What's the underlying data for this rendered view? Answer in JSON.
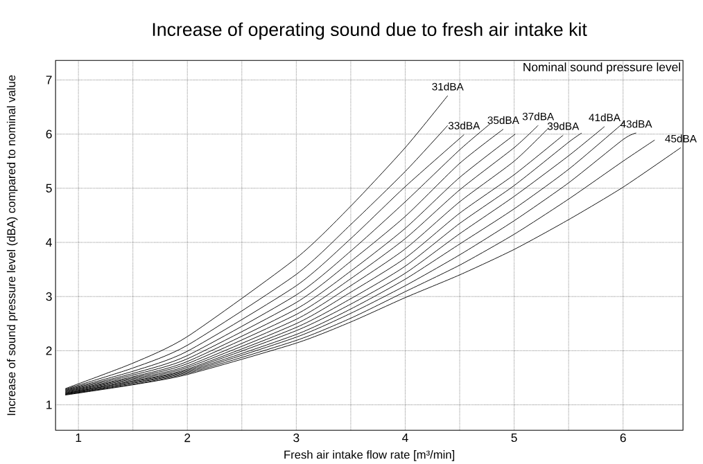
{
  "chart_data": {
    "type": "line",
    "title": "Increase of operating sound due to fresh air intake kit",
    "xlabel": "Fresh air intake flow rate [m³/min]",
    "ylabel": "Increase of sound pressure level (dBA) compared to nominal value",
    "annotations": [
      "Nominal sound pressure level"
    ],
    "xlim": [
      0.79,
      6.55
    ],
    "ylim": [
      0.53,
      7.36
    ],
    "xticks": [
      1,
      {
        "value": 1.5,
        "label": null
      },
      2,
      {
        "value": 2.5,
        "label": null
      },
      3,
      {
        "value": 3.5,
        "label": null
      },
      4,
      {
        "value": 4.5,
        "label": null
      },
      5,
      {
        "value": 5.5,
        "label": null
      },
      6
    ],
    "yticks": [
      1,
      2,
      3,
      4,
      5,
      6,
      7
    ],
    "grid": true,
    "marker": "none",
    "line_style": "solid",
    "series": [
      {
        "name": "31dBA",
        "color": "#000000",
        "x": [
          0.88,
          1.5,
          2,
          3,
          3.5,
          4,
          4.39
        ],
        "values": [
          1.3,
          1.77,
          2.26,
          3.71,
          4.67,
          5.75,
          6.71
        ]
      },
      {
        "color": "#000000",
        "x": [
          0.88,
          1.5,
          2,
          3,
          3.5,
          4,
          4.39
        ],
        "values": [
          1.29,
          1.68,
          2.1,
          3.41,
          4.33,
          5.31,
          6.16
        ]
      },
      {
        "name": "33dBA",
        "color": "#000000",
        "x": [
          0.88,
          1.5,
          2,
          3,
          3.5,
          4,
          4.54
        ],
        "values": [
          1.28,
          1.62,
          1.99,
          3.2,
          4.07,
          5.03,
          5.99
        ]
      },
      {
        "color": "#000000",
        "x": [
          0.88,
          1.5,
          2,
          3,
          3.5,
          4,
          4.5,
          4.78
        ],
        "values": [
          1.27,
          1.58,
          1.91,
          3.03,
          3.84,
          4.75,
          5.71,
          6.19
        ]
      },
      {
        "name": "35dBA",
        "color": "#000000",
        "x": [
          0.88,
          1.5,
          2,
          3,
          3.5,
          4,
          4.5,
          4.9
        ],
        "values": [
          1.26,
          1.55,
          1.85,
          2.89,
          3.65,
          4.48,
          5.46,
          6.09
        ]
      },
      {
        "color": "#000000",
        "x": [
          0.88,
          1.5,
          2,
          3,
          3.5,
          4,
          4.5,
          5.01
        ],
        "values": [
          1.25,
          1.52,
          1.8,
          2.77,
          3.47,
          4.26,
          5.2,
          6.0
        ]
      },
      {
        "name": "37dBA",
        "color": "#000000",
        "x": [
          0.88,
          1.5,
          2,
          3,
          3.5,
          4,
          4.5,
          5,
          5.22
        ],
        "values": [
          1.24,
          1.5,
          1.76,
          2.67,
          3.33,
          4.07,
          4.97,
          5.75,
          6.16
        ]
      },
      {
        "color": "#000000",
        "x": [
          0.88,
          1.5,
          2,
          3,
          3.5,
          4,
          4.5,
          5,
          5.31
        ],
        "values": [
          1.23,
          1.48,
          1.72,
          2.58,
          3.2,
          3.88,
          4.75,
          5.5,
          6.1
        ]
      },
      {
        "name": "39dBA",
        "color": "#000000",
        "x": [
          0.88,
          1.5,
          2,
          3,
          3.5,
          4,
          4.5,
          5,
          5.45
        ],
        "values": [
          1.22,
          1.46,
          1.69,
          2.5,
          3.08,
          3.71,
          4.54,
          5.25,
          5.98
        ]
      },
      {
        "color": "#000000",
        "x": [
          0.88,
          1.5,
          2,
          3,
          3.5,
          4,
          4.5,
          5,
          5.5,
          5.62
        ],
        "values": [
          1.21,
          1.44,
          1.66,
          2.43,
          2.96,
          3.56,
          4.35,
          5.05,
          5.85,
          6.02
        ]
      },
      {
        "name": "41dBA",
        "color": "#000000",
        "x": [
          0.88,
          1.5,
          2,
          3,
          3.5,
          4,
          4.5,
          5,
          5.5,
          5.83
        ],
        "values": [
          1.21,
          1.43,
          1.64,
          2.37,
          2.86,
          3.43,
          4.16,
          4.85,
          5.6,
          6.14
        ]
      },
      {
        "color": "#000000",
        "x": [
          0.88,
          1.5,
          2,
          3,
          3.5,
          4,
          4.5,
          5,
          5.5,
          6.01
        ],
        "values": [
          1.2,
          1.41,
          1.62,
          2.3,
          2.77,
          3.32,
          3.97,
          4.62,
          5.35,
          6.22
        ]
      },
      {
        "name": "43dBA",
        "color": "#000000",
        "x": [
          0.88,
          1.5,
          2,
          3,
          3.5,
          4,
          4.5,
          5,
          5.5,
          6,
          6.12
        ],
        "values": [
          1.19,
          1.4,
          1.6,
          2.25,
          2.69,
          3.2,
          3.77,
          4.4,
          5.1,
          5.9,
          6.02
        ]
      },
      {
        "color": "#000000",
        "x": [
          0.88,
          1.5,
          2,
          3,
          3.5,
          4,
          4.5,
          5,
          5.5,
          6,
          6.29
        ],
        "values": [
          1.19,
          1.38,
          1.58,
          2.19,
          2.6,
          3.09,
          3.58,
          4.15,
          4.8,
          5.5,
          5.89
        ]
      },
      {
        "name": "45dBA",
        "color": "#000000",
        "x": [
          0.88,
          1.5,
          2,
          3,
          3.5,
          4,
          4.5,
          5,
          5.5,
          6,
          6.53
        ],
        "values": [
          1.18,
          1.37,
          1.56,
          2.14,
          2.53,
          2.98,
          3.4,
          3.87,
          4.42,
          5.02,
          5.75
        ]
      }
    ]
  }
}
